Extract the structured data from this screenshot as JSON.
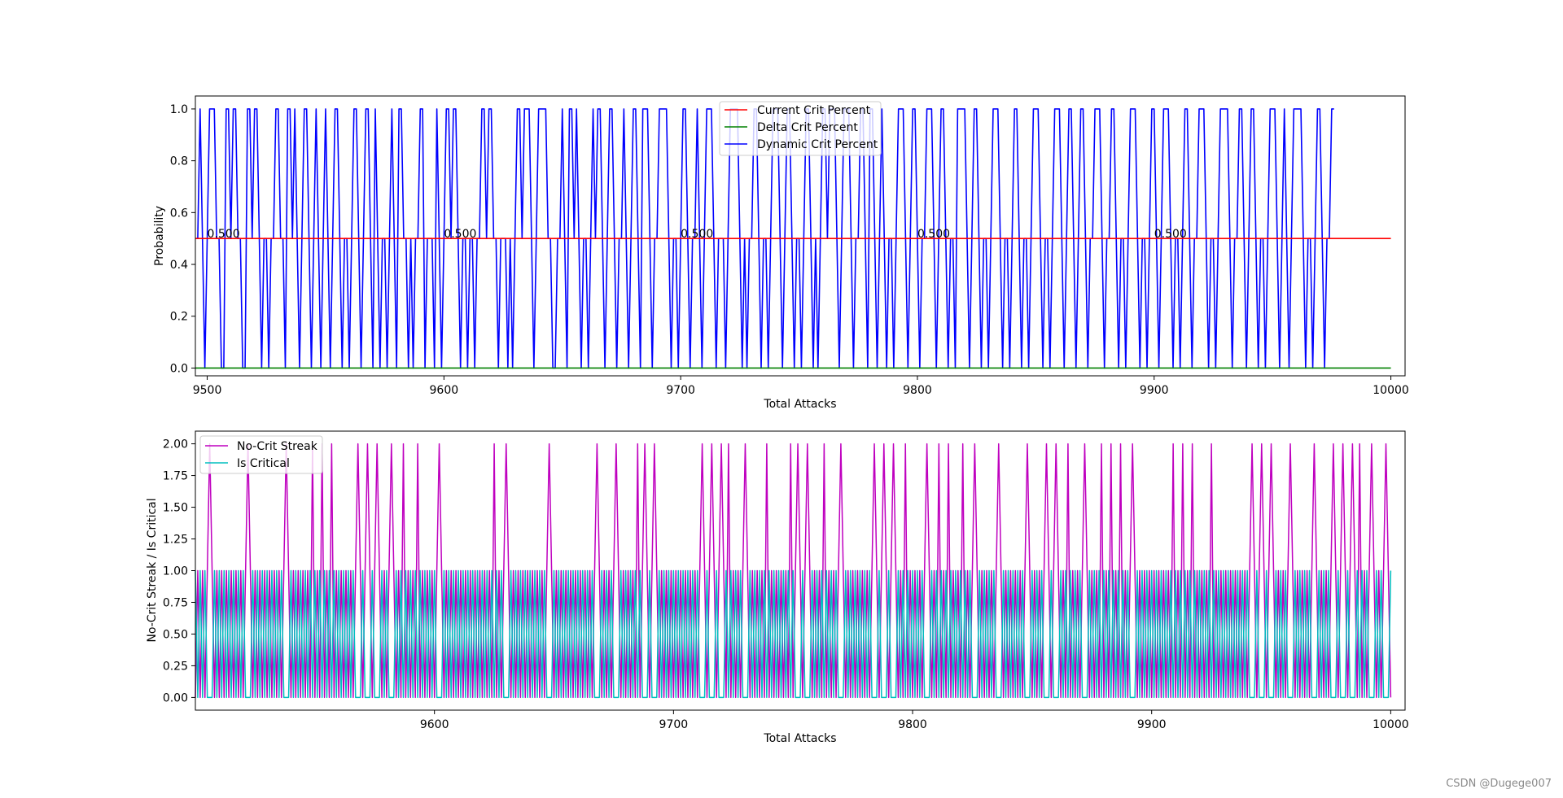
{
  "watermark": "CSDN @Dugege007",
  "chart_data": [
    {
      "type": "line",
      "xlabel": "Total Attacks",
      "ylabel": "Probability",
      "xlim": [
        9495,
        10006
      ],
      "ylim": [
        -0.03,
        1.05
      ],
      "xticks": [
        9500,
        9600,
        9700,
        9800,
        9900,
        10000
      ],
      "xtick_labels": [
        "9500",
        "9600",
        "9700",
        "9800",
        "9900",
        "10000"
      ],
      "yticks": [
        0.0,
        0.2,
        0.4,
        0.6,
        0.8,
        1.0
      ],
      "ytick_labels": [
        "0.0",
        "0.2",
        "0.4",
        "0.6",
        "0.8",
        "1.0"
      ],
      "legend_position": "upper-center",
      "grid": false,
      "series": [
        {
          "name": "Current Crit Percent",
          "color": "#ff0000",
          "kind": "constant",
          "value": 0.5,
          "x_start": 9495,
          "x_end": 10000
        },
        {
          "name": "Delta Crit Percent",
          "color": "#008000",
          "kind": "constant",
          "value": 0.0,
          "x_start": 9495,
          "x_end": 10000
        },
        {
          "name": "Dynamic Crit Percent",
          "color": "#0000ff",
          "kind": "dynamic",
          "x_start": 9495,
          "values": [
            0.5,
            0.5,
            1,
            0.5,
            0,
            0.5,
            1,
            1,
            1,
            0.5,
            0.5,
            0,
            0,
            1,
            1,
            0.5,
            1,
            1,
            0.5,
            0.5,
            0,
            0,
            1,
            1,
            0.5,
            1,
            1,
            0.5,
            0,
            0.5,
            0.5,
            0,
            0.5,
            0.5,
            1,
            1,
            0.5,
            0.5,
            0,
            1,
            1,
            0.5,
            1,
            0.5,
            0,
            0.5,
            1,
            1,
            0.5,
            0,
            0.5,
            1,
            0.5,
            0,
            0.5,
            1,
            0.5,
            0,
            0.5,
            1,
            1,
            0.5,
            0,
            0.5,
            0.5,
            0,
            0.5,
            1,
            1,
            0.5,
            0,
            0.5,
            1,
            1,
            0.5,
            0,
            1,
            0.5,
            0,
            0.5,
            0.5,
            0,
            0.5,
            1,
            0.5,
            0,
            1,
            1,
            0.5,
            0.5,
            0,
            0.5,
            0,
            0.5,
            0.5,
            1,
            1,
            0,
            0.5,
            0.5,
            0.5,
            0,
            1,
            0.5,
            0,
            0.5,
            1,
            1,
            0.5,
            1,
            1,
            0.5,
            0,
            0.5,
            0.5,
            0,
            0.5,
            0.5,
            0,
            0.5,
            0.5,
            1,
            1,
            0.5,
            1,
            1,
            0.5,
            0.5,
            0,
            0.5,
            0.5,
            0.5,
            0,
            0.5,
            0,
            0.5,
            1,
            1,
            0.5,
            1,
            1,
            1,
            0.5,
            0,
            0.5,
            1,
            1,
            1,
            1,
            0.5,
            0.5,
            0,
            0,
            0.5,
            0.5,
            1,
            0.5,
            0,
            1,
            1,
            0.5,
            1,
            0.5,
            0,
            0.5,
            0.5,
            0,
            0.5,
            1,
            0.5,
            1,
            1,
            0.5,
            0,
            0.5,
            1,
            1,
            0.5,
            0,
            0.5,
            0.5,
            1,
            0.5,
            0,
            0.5,
            1,
            1,
            0.5,
            0,
            1,
            1,
            1,
            0.5,
            0,
            0.5,
            0.5,
            1,
            1,
            1,
            1,
            0.5,
            0,
            0.5,
            0.5,
            0,
            0.5,
            1,
            1,
            0.5,
            0,
            0.5,
            0.5,
            1,
            0.5,
            0,
            0.5,
            1,
            1,
            1,
            0.5,
            0,
            0.5,
            0.5,
            0.5,
            0,
            0.5,
            1,
            1,
            1,
            1,
            0.5,
            0,
            0.5,
            0,
            0.5,
            0.5,
            1,
            1,
            0.5,
            0,
            0.5,
            0.5,
            0,
            0.5,
            1,
            1,
            1,
            0.5,
            0,
            0.5,
            1,
            1,
            0.5,
            0,
            0.5,
            0.5,
            0,
            0.5,
            1,
            1,
            0.5,
            0,
            0.5,
            0,
            0.5,
            1,
            1,
            0.5,
            1,
            1,
            1,
            0.5,
            0,
            0.5,
            1,
            1,
            1,
            0.5,
            0,
            0.5,
            0.5,
            1,
            1,
            0.5,
            0,
            1,
            1,
            0.5,
            0,
            0.5,
            1,
            0.5,
            0,
            0.5,
            0.5,
            0,
            0.5,
            1,
            1,
            1,
            0.5,
            0,
            0.5,
            1,
            1,
            0.5,
            0,
            0.5,
            0.5,
            1,
            1,
            1,
            0.5,
            0,
            0.5,
            1,
            1,
            0.5,
            0,
            0.5,
            0.5,
            0,
            1,
            1,
            1,
            1,
            0.5,
            0,
            0.5,
            1,
            1,
            0.5,
            0,
            0.5,
            0.5,
            0,
            0.5,
            1,
            1,
            1,
            0.5,
            0,
            0.5,
            0.5,
            0,
            0.5,
            1,
            1,
            0.5,
            0,
            0.5,
            0.5,
            0,
            0.5,
            1,
            1,
            1,
            0.5,
            0,
            0.5,
            0.5,
            0,
            0.5,
            1,
            1,
            1,
            0.5,
            0,
            0.5,
            1,
            1,
            0.5,
            0,
            0.5,
            1,
            1,
            0.5,
            0,
            0.5,
            0.5,
            1,
            1,
            1,
            0.5,
            0,
            0.5,
            0.5,
            1,
            1,
            0.5,
            0,
            0.5,
            0.5,
            0,
            0.5,
            1,
            1,
            1,
            0.5,
            0,
            0.5,
            0.5,
            0,
            0.5,
            1,
            1,
            0.5,
            0,
            0.5,
            1,
            1,
            1,
            0.5,
            0,
            0.5,
            0.5,
            0,
            0.5,
            1,
            1,
            0.5,
            0,
            0.5,
            0.5,
            1,
            1,
            1,
            0.5,
            0,
            0.5,
            0.5,
            0,
            0.5,
            1,
            1,
            1,
            1,
            0.5,
            0,
            0.5,
            0.5,
            1,
            1,
            0.5,
            0,
            0.5,
            1,
            1,
            0.5,
            0,
            0.5,
            0.5,
            0,
            0.5,
            1,
            1,
            1,
            0.5,
            0,
            0.5,
            1,
            0.5,
            0,
            0.5,
            1,
            1,
            1,
            1,
            0.5,
            0,
            0.5,
            0.5,
            0,
            0.5,
            1,
            1,
            0.5,
            0,
            0.5,
            0.5,
            1,
            1
          ]
        }
      ],
      "annotations": [
        {
          "x": 9500,
          "y": 0.5,
          "text": "0.500"
        },
        {
          "x": 9600,
          "y": 0.5,
          "text": "0.500"
        },
        {
          "x": 9700,
          "y": 0.5,
          "text": "0.500"
        },
        {
          "x": 9800,
          "y": 0.5,
          "text": "0.500"
        },
        {
          "x": 9900,
          "y": 0.5,
          "text": "0.500"
        }
      ]
    },
    {
      "type": "line",
      "xlabel": "Total Attacks",
      "ylabel": "No-Crit Streak / Is Critical",
      "xlim": [
        9500,
        10006
      ],
      "ylim": [
        -0.1,
        2.1
      ],
      "xticks": [
        9600,
        9700,
        9800,
        9900,
        10000
      ],
      "xtick_labels": [
        "9600",
        "9700",
        "9800",
        "9900",
        "10000"
      ],
      "yticks": [
        0.0,
        0.25,
        0.5,
        0.75,
        1.0,
        1.25,
        1.5,
        1.75,
        2.0
      ],
      "ytick_labels": [
        "0.00",
        "0.25",
        "0.50",
        "0.75",
        "1.00",
        "1.25",
        "1.50",
        "1.75",
        "2.00"
      ],
      "legend_position": "upper-left",
      "grid": false,
      "series": [
        {
          "name": "No-Crit Streak",
          "color": "#bf00bf",
          "kind": "streak",
          "x_start": 9500,
          "peaks_2": [
            9506,
            9522,
            9538,
            9549,
            9553,
            9557,
            9568,
            9572,
            9576,
            9582,
            9587,
            9593,
            9602,
            9625,
            9630,
            9648,
            9668,
            9676,
            9685,
            9688,
            9692,
            9712,
            9716,
            9720,
            9723,
            9730,
            9739,
            9749,
            9752,
            9756,
            9763,
            9770,
            9784,
            9788,
            9792,
            9797,
            9806,
            9811,
            9815,
            9821,
            9826,
            9836,
            9848,
            9856,
            9860,
            9865,
            9872,
            9879,
            9883,
            9887,
            9892,
            9909,
            9913,
            9917,
            9925,
            9942,
            9946,
            9950,
            9958,
            9968,
            9976,
            9980,
            9984,
            9987,
            9992,
            9998
          ],
          "values_before": []
        },
        {
          "name": "Is Critical",
          "color": "#00bfbf",
          "kind": "binary",
          "x_start": 9500
        }
      ]
    }
  ]
}
